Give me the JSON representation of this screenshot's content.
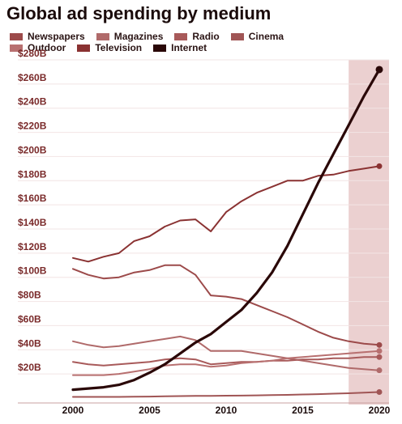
{
  "chart_data": {
    "type": "line",
    "title": "Global ad spending by medium",
    "xlabel": "",
    "ylabel": "",
    "x": [
      2000,
      2001,
      2002,
      2003,
      2004,
      2005,
      2006,
      2007,
      2008,
      2009,
      2010,
      2011,
      2012,
      2013,
      2014,
      2015,
      2016,
      2017,
      2018,
      2019,
      2020
    ],
    "xlim": [
      2000,
      2020
    ],
    "ylim": [
      0,
      280
    ],
    "xticks": [
      2000,
      2005,
      2010,
      2015,
      2020
    ],
    "yticks": [
      20,
      40,
      60,
      80,
      100,
      120,
      140,
      160,
      180,
      200,
      220,
      240,
      260,
      280
    ],
    "ytick_labels": [
      "$20B",
      "$40B",
      "$60B",
      "$80B",
      "$100B",
      "$120B",
      "$140B",
      "$160B",
      "$180B",
      "$200B",
      "$220B",
      "$240B",
      "$260B",
      "$280B"
    ],
    "highlight_range": [
      2018,
      2020
    ],
    "legend_position": "top",
    "series": [
      {
        "name": "Newspapers",
        "color": "#9c4a4a",
        "values": [
          107,
          102,
          99,
          100,
          104,
          106,
          110,
          110,
          102,
          85,
          84,
          82,
          77,
          72,
          67,
          61,
          55,
          50,
          47,
          45,
          44
        ]
      },
      {
        "name": "Magazines",
        "color": "#b06a6a",
        "values": [
          47,
          44,
          42,
          43,
          45,
          47,
          49,
          51,
          48,
          39,
          39,
          39,
          37,
          35,
          33,
          31,
          29,
          27,
          25,
          24,
          23
        ]
      },
      {
        "name": "Radio",
        "color": "#a85a5a",
        "values": [
          30,
          28,
          27,
          28,
          29,
          30,
          32,
          33,
          32,
          28,
          29,
          30,
          30,
          31,
          31,
          32,
          32,
          33,
          33,
          34,
          34
        ]
      },
      {
        "name": "Cinema",
        "color": "#a05555",
        "values": [
          1,
          1,
          1,
          1,
          1.2,
          1.3,
          1.5,
          1.7,
          1.8,
          1.8,
          2,
          2.1,
          2.3,
          2.5,
          2.7,
          3,
          3.3,
          3.7,
          4,
          4.5,
          5
        ]
      },
      {
        "name": "Outdoor",
        "color": "#b87070",
        "values": [
          19,
          19,
          19,
          20,
          22,
          24,
          27,
          28,
          28,
          26,
          27,
          29,
          30,
          31,
          33,
          34,
          35,
          36,
          37,
          38,
          39
        ]
      },
      {
        "name": "Television",
        "color": "#8a3232",
        "values": [
          116,
          113,
          117,
          120,
          130,
          134,
          142,
          147,
          148,
          138,
          154,
          163,
          170,
          175,
          180,
          180,
          184,
          185,
          188,
          190,
          192
        ]
      },
      {
        "name": "Internet",
        "color": "#2a0808",
        "values": [
          7,
          8,
          9,
          11,
          15,
          21,
          28,
          37,
          46,
          53,
          63,
          73,
          87,
          104,
          126,
          152,
          178,
          202,
          226,
          250,
          272
        ]
      }
    ]
  }
}
